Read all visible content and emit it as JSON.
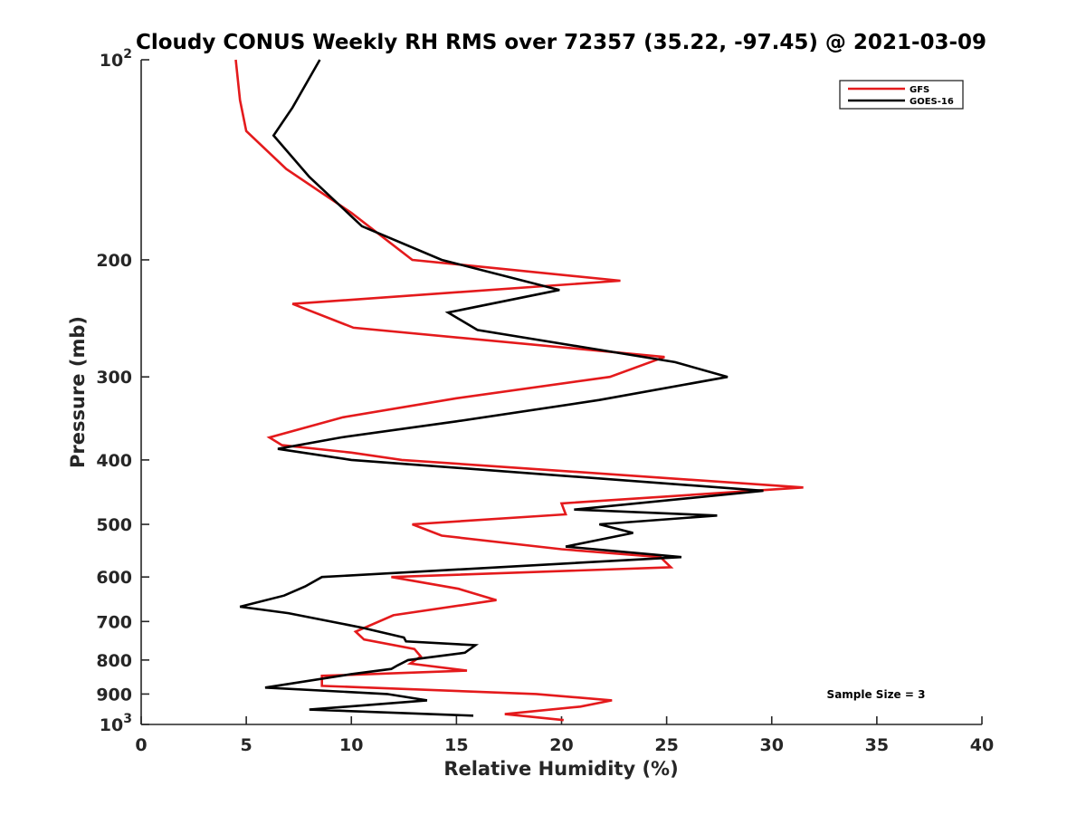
{
  "chart_data": {
    "type": "line",
    "title": "Cloudy CONUS Weekly RH RMS over 72357 (35.22, -97.45) @ 2021-03-09",
    "xlabel": "Relative Humidity (%)",
    "ylabel": "Pressure (mb)",
    "xlim": [
      0,
      40
    ],
    "ylim": [
      100,
      1000
    ],
    "yscale": "log",
    "y_reversed": true,
    "grid": false,
    "legend_position": "top-right",
    "x_ticks": [
      0,
      5,
      10,
      15,
      20,
      25,
      30,
      35,
      40
    ],
    "y_ticks": [
      {
        "value": 100,
        "base": "10",
        "exp": "2"
      },
      {
        "value": 200,
        "label": "200"
      },
      {
        "value": 300,
        "label": "300"
      },
      {
        "value": 400,
        "label": "400"
      },
      {
        "value": 500,
        "label": "500"
      },
      {
        "value": 600,
        "label": "600"
      },
      {
        "value": 700,
        "label": "700"
      },
      {
        "value": 800,
        "label": "800"
      },
      {
        "value": 900,
        "label": "900"
      },
      {
        "value": 1000,
        "base": "10",
        "exp": "3"
      }
    ],
    "annotation": "Sample Size = 3",
    "series": [
      {
        "name": "GFS",
        "color": "#e41a1c",
        "points": [
          [
            4.5,
            100
          ],
          [
            4.7,
            115
          ],
          [
            5.0,
            128
          ],
          [
            6.9,
            146
          ],
          [
            10.0,
            170
          ],
          [
            12.9,
            200
          ],
          [
            22.8,
            215
          ],
          [
            7.2,
            233
          ],
          [
            10.1,
            253
          ],
          [
            24.9,
            280
          ],
          [
            22.3,
            300
          ],
          [
            15.0,
            323
          ],
          [
            9.6,
            345
          ],
          [
            6.1,
            370
          ],
          [
            6.7,
            380
          ],
          [
            10.0,
            390
          ],
          [
            12.4,
            400
          ],
          [
            31.5,
            440
          ],
          [
            20.0,
            465
          ],
          [
            20.2,
            483
          ],
          [
            12.9,
            500
          ],
          [
            14.3,
            520
          ],
          [
            20.0,
            545
          ],
          [
            24.7,
            560
          ],
          [
            25.2,
            580
          ],
          [
            11.9,
            600
          ],
          [
            15.1,
            625
          ],
          [
            16.9,
            650
          ],
          [
            12.0,
            685
          ],
          [
            10.2,
            725
          ],
          [
            10.6,
            745
          ],
          [
            13.0,
            770
          ],
          [
            13.3,
            790
          ],
          [
            12.8,
            810
          ],
          [
            15.5,
            830
          ],
          [
            8.6,
            845
          ],
          [
            8.6,
            875
          ],
          [
            10.8,
            880
          ],
          [
            18.8,
            900
          ],
          [
            22.4,
            920
          ],
          [
            20.9,
            940
          ],
          [
            17.3,
            965
          ],
          [
            20.1,
            985
          ]
        ]
      },
      {
        "name": "GOES-16",
        "color": "#000000",
        "points": [
          [
            8.5,
            100
          ],
          [
            7.2,
            118
          ],
          [
            6.3,
            130
          ],
          [
            8.0,
            150
          ],
          [
            10.5,
            178
          ],
          [
            14.3,
            200
          ],
          [
            19.9,
            222
          ],
          [
            14.6,
            240
          ],
          [
            16.0,
            255
          ],
          [
            25.4,
            285
          ],
          [
            27.9,
            300
          ],
          [
            21.8,
            325
          ],
          [
            15.0,
            350
          ],
          [
            9.5,
            370
          ],
          [
            6.5,
            385
          ],
          [
            10.0,
            400
          ],
          [
            29.6,
            445
          ],
          [
            20.6,
            475
          ],
          [
            27.4,
            485
          ],
          [
            21.8,
            500
          ],
          [
            23.4,
            515
          ],
          [
            20.2,
            540
          ],
          [
            25.7,
            560
          ],
          [
            8.6,
            600
          ],
          [
            7.8,
            620
          ],
          [
            6.8,
            640
          ],
          [
            4.7,
            665
          ],
          [
            7.0,
            680
          ],
          [
            10.5,
            715
          ],
          [
            12.5,
            740
          ],
          [
            12.6,
            750
          ],
          [
            15.9,
            760
          ],
          [
            15.4,
            780
          ],
          [
            12.7,
            800
          ],
          [
            12.2,
            815
          ],
          [
            11.9,
            825
          ],
          [
            10.0,
            840
          ],
          [
            5.9,
            880
          ],
          [
            11.7,
            900
          ],
          [
            13.6,
            920
          ],
          [
            8.0,
            950
          ],
          [
            15.8,
            970
          ]
        ]
      }
    ]
  }
}
